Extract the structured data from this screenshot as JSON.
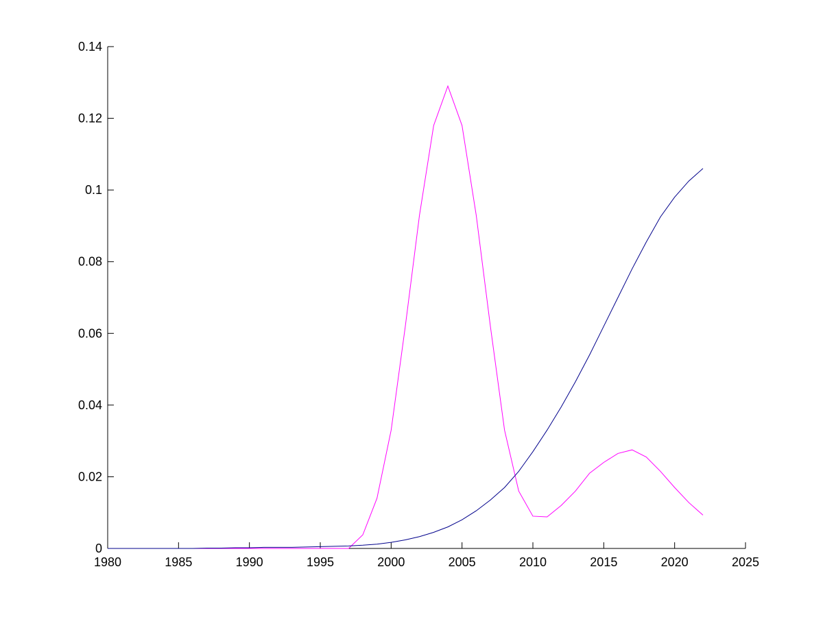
{
  "chart_data": {
    "type": "line",
    "x": [
      1980,
      1981,
      1982,
      1983,
      1984,
      1985,
      1986,
      1987,
      1988,
      1989,
      1990,
      1991,
      1992,
      1993,
      1994,
      1995,
      1996,
      1997,
      1998,
      1999,
      2000,
      2001,
      2002,
      2003,
      2004,
      2005,
      2006,
      2007,
      2008,
      2009,
      2010,
      2011,
      2012,
      2013,
      2014,
      2015,
      2016,
      2017,
      2018,
      2019,
      2020,
      2021,
      2022
    ],
    "series": [
      {
        "color": "#ff00ff",
        "values": [
          0,
          0,
          0,
          0,
          0,
          0,
          0,
          0,
          0,
          0,
          0,
          0,
          0,
          0,
          0,
          0,
          0,
          0,
          0.0038,
          0.014,
          0.033,
          0.062,
          0.093,
          0.118,
          0.129,
          0.118,
          0.093,
          0.062,
          0.033,
          0.016,
          0.009,
          0.0088,
          0.012,
          0.016,
          0.021,
          0.024,
          0.0265,
          0.0275,
          0.0255,
          0.0215,
          0.017,
          0.0128,
          0.0093
        ]
      },
      {
        "color": "#00008b",
        "values": [
          0,
          0,
          0,
          0,
          0,
          0,
          0,
          0.0001,
          0.0001,
          0.0002,
          0.0002,
          0.0003,
          0.0003,
          0.0003,
          0.0004,
          0.0005,
          0.0006,
          0.0007,
          0.0009,
          0.0012,
          0.0017,
          0.0024,
          0.0033,
          0.0045,
          0.006,
          0.008,
          0.0105,
          0.0135,
          0.017,
          0.0215,
          0.027,
          0.033,
          0.0395,
          0.0465,
          0.054,
          0.062,
          0.07,
          0.078,
          0.0855,
          0.0925,
          0.098,
          0.1025,
          0.106
        ]
      }
    ],
    "xlim": [
      1980,
      2025
    ],
    "xticks": [
      1980,
      1985,
      1990,
      1995,
      2000,
      2005,
      2010,
      2015,
      2020,
      2025
    ],
    "ylim": [
      0,
      0.14
    ],
    "yticks": [
      0,
      0.02,
      0.04,
      0.06,
      0.08,
      0.1,
      0.12,
      0.14
    ]
  }
}
